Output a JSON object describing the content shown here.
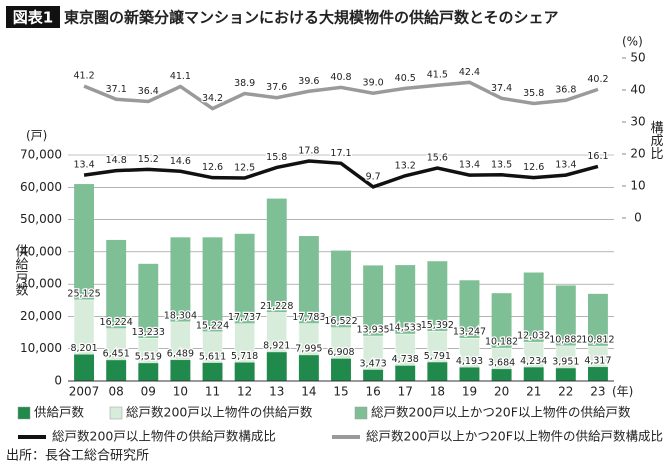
{
  "chart_data": {
    "type": "bar",
    "badge": "図表1",
    "title": "東京圏の新築分譲マンションにおける大規模物件の供給戸数とそのシェア",
    "y_unit": "(戸)",
    "y2_unit": "(%)",
    "y_label": "供給戸数",
    "y2_label": "構成比",
    "x_unit": "(年)",
    "source": "出所：長谷工総合研究所",
    "categories": [
      "2007",
      "08",
      "09",
      "10",
      "11",
      "12",
      "13",
      "14",
      "15",
      "16",
      "17",
      "18",
      "19",
      "20",
      "21",
      "22",
      "23"
    ],
    "ylim": [
      0,
      70000
    ],
    "yticks": [
      {
        "value": 0,
        "label": "0"
      },
      {
        "value": 10000,
        "label": "10,000"
      },
      {
        "value": 20000,
        "label": "20,000"
      },
      {
        "value": 30000,
        "label": "30,000"
      },
      {
        "value": 40000,
        "label": "40,000"
      },
      {
        "value": 50000,
        "label": "50,000"
      },
      {
        "value": 60000,
        "label": "60,000"
      },
      {
        "value": 70000,
        "label": "70,000"
      }
    ],
    "y2lim": [
      0,
      50
    ],
    "y2ticks": [
      0,
      10,
      20,
      30,
      40,
      50
    ],
    "series": [
      {
        "name": "供給戸数",
        "color": "#1f8a4c",
        "values": [
          8201,
          6451,
          5519,
          6489,
          5611,
          5718,
          8921,
          7995,
          6908,
          3473,
          4738,
          5791,
          4193,
          3684,
          4234,
          3951,
          4317
        ],
        "value_labels": [
          "8,201",
          "6,451",
          "5,519",
          "6,489",
          "5,611",
          "5,718",
          "8,921",
          "7,995",
          "6,908",
          "3,473",
          "4,738",
          "5,791",
          "4,193",
          "3,684",
          "4,234",
          "3,951",
          "4,317"
        ]
      },
      {
        "name": "総戸数200戸以上物件の供給戸数",
        "color": "#d8ecdb",
        "values": [
          25125,
          16224,
          13233,
          18304,
          15224,
          17737,
          21228,
          17783,
          16522,
          13935,
          14533,
          15392,
          13247,
          10182,
          12032,
          10882,
          10812
        ],
        "value_labels": [
          "25,125",
          "16,224",
          "13,233",
          "18,304",
          "15,224",
          "17,737",
          "21,228",
          "17,783",
          "16,522",
          "13,935",
          "14,533",
          "15,392",
          "13,247",
          "10,182",
          "12,032",
          "10,882",
          "10,812"
        ]
      },
      {
        "name": "総戸数200戸以上かつ20F以上物件の供給戸数",
        "color": "#7fbf96",
        "values": [
          61000,
          43700,
          36300,
          44500,
          44500,
          45600,
          56500,
          44900,
          40400,
          35800,
          35900,
          37100,
          31200,
          27200,
          33600,
          29600,
          27000
        ]
      },
      {
        "name": "総戸数200戸以上物件の供給戸数構成比",
        "color": "#111111",
        "axis": "y2",
        "type": "line",
        "values": [
          13.4,
          14.8,
          15.2,
          14.6,
          12.6,
          12.5,
          15.8,
          17.8,
          17.1,
          9.7,
          13.2,
          15.6,
          13.4,
          13.5,
          12.6,
          13.4,
          16.1
        ]
      },
      {
        "name": "総戸数200戸以上かつ20F以上物件の供給戸数構成比",
        "color": "#9a9a9a",
        "axis": "y2",
        "type": "line",
        "values": [
          41.2,
          37.1,
          36.4,
          41.1,
          34.2,
          38.9,
          37.6,
          39.6,
          40.8,
          39.0,
          40.5,
          41.5,
          42.4,
          37.4,
          35.8,
          36.8,
          40.2
        ],
        "value_labels": [
          "41.2",
          "37.1",
          "36.4",
          "41.1",
          "34.2",
          "38.9",
          "37.6",
          "39.6",
          "40.8",
          "39.0",
          "40.5",
          "41.5",
          "42.4",
          "37.4",
          "35.8",
          "36.8",
          "40.2"
        ]
      }
    ]
  }
}
